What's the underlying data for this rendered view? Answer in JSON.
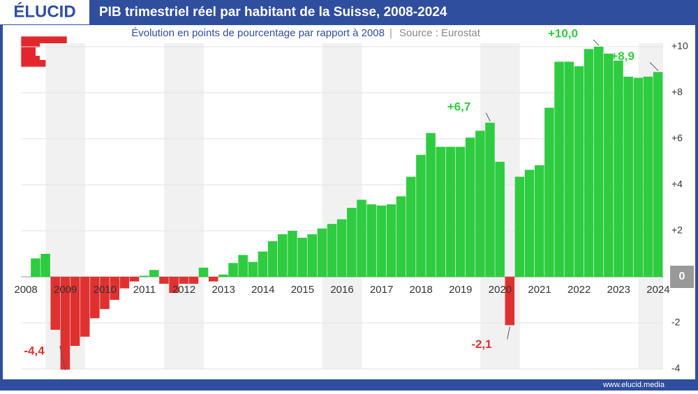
{
  "brand": "ÉLUCID",
  "footer": "www.elucid.media",
  "chart_data": {
    "type": "bar",
    "title": "PIB trimestriel réel par habitant de la Suisse, 2008-2024",
    "subtitle": "Évolution en points de pourcentage par rapport à 2008",
    "source": "Source : Eurostat",
    "categories": [
      "2008",
      null,
      null,
      null,
      "2009",
      null,
      null,
      null,
      "2010",
      null,
      null,
      null,
      "2011",
      null,
      null,
      null,
      "2012",
      null,
      null,
      null,
      "2013",
      null,
      null,
      null,
      "2014",
      null,
      null,
      null,
      "2015",
      null,
      null,
      null,
      "2016",
      null,
      null,
      null,
      "2017",
      null,
      null,
      null,
      "2018",
      null,
      null,
      null,
      "2019",
      null,
      null,
      null,
      "2020",
      null,
      null,
      null,
      "2021",
      null,
      null,
      null,
      "2022",
      null,
      null,
      null,
      "2023",
      null,
      null,
      null,
      "2024"
    ],
    "values": [
      0,
      0.8,
      1.0,
      -2.3,
      -4.4,
      -3.0,
      -2.6,
      -1.8,
      -1.4,
      -1.0,
      -0.5,
      -0.2,
      0.05,
      0.3,
      -0.3,
      -0.7,
      -0.3,
      -0.3,
      0.4,
      -0.2,
      0.1,
      0.6,
      0.95,
      0.65,
      1.1,
      1.55,
      1.85,
      2.0,
      1.7,
      1.85,
      2.1,
      2.3,
      2.5,
      3.0,
      3.35,
      3.15,
      3.1,
      3.15,
      3.5,
      4.35,
      5.3,
      6.25,
      5.65,
      5.65,
      5.65,
      6.05,
      6.35,
      6.7,
      5.0,
      -2.1,
      4.35,
      4.65,
      4.85,
      7.35,
      9.35,
      9.35,
      9.15,
      9.9,
      10.0,
      9.7,
      9.4,
      8.7,
      8.65,
      8.7,
      8.9
    ],
    "value_labels": [
      null,
      null,
      null,
      null,
      "-4,4",
      null,
      null,
      null,
      null,
      null,
      null,
      null,
      null,
      null,
      null,
      null,
      null,
      null,
      null,
      null,
      null,
      null,
      null,
      null,
      null,
      null,
      null,
      null,
      null,
      null,
      null,
      null,
      null,
      null,
      null,
      null,
      null,
      null,
      null,
      null,
      null,
      null,
      null,
      null,
      null,
      null,
      null,
      "+6,7",
      null,
      "-2,1",
      null,
      null,
      null,
      null,
      null,
      null,
      null,
      null,
      "+10,0",
      null,
      null,
      null,
      null,
      null,
      "+8,9"
    ],
    "positive_color": "#2ecc40",
    "negative_color": "#e03131",
    "ylim": [
      -4,
      10
    ],
    "yticks": [
      -4,
      -2,
      0,
      {
        "value": 2,
        "label": "+2"
      },
      {
        "value": 4,
        "label": "+4"
      },
      {
        "value": 6,
        "label": "+6"
      },
      {
        "value": 8,
        "label": "+8"
      },
      {
        "value": 10,
        "label": "+10"
      }
    ],
    "grid": true
  }
}
